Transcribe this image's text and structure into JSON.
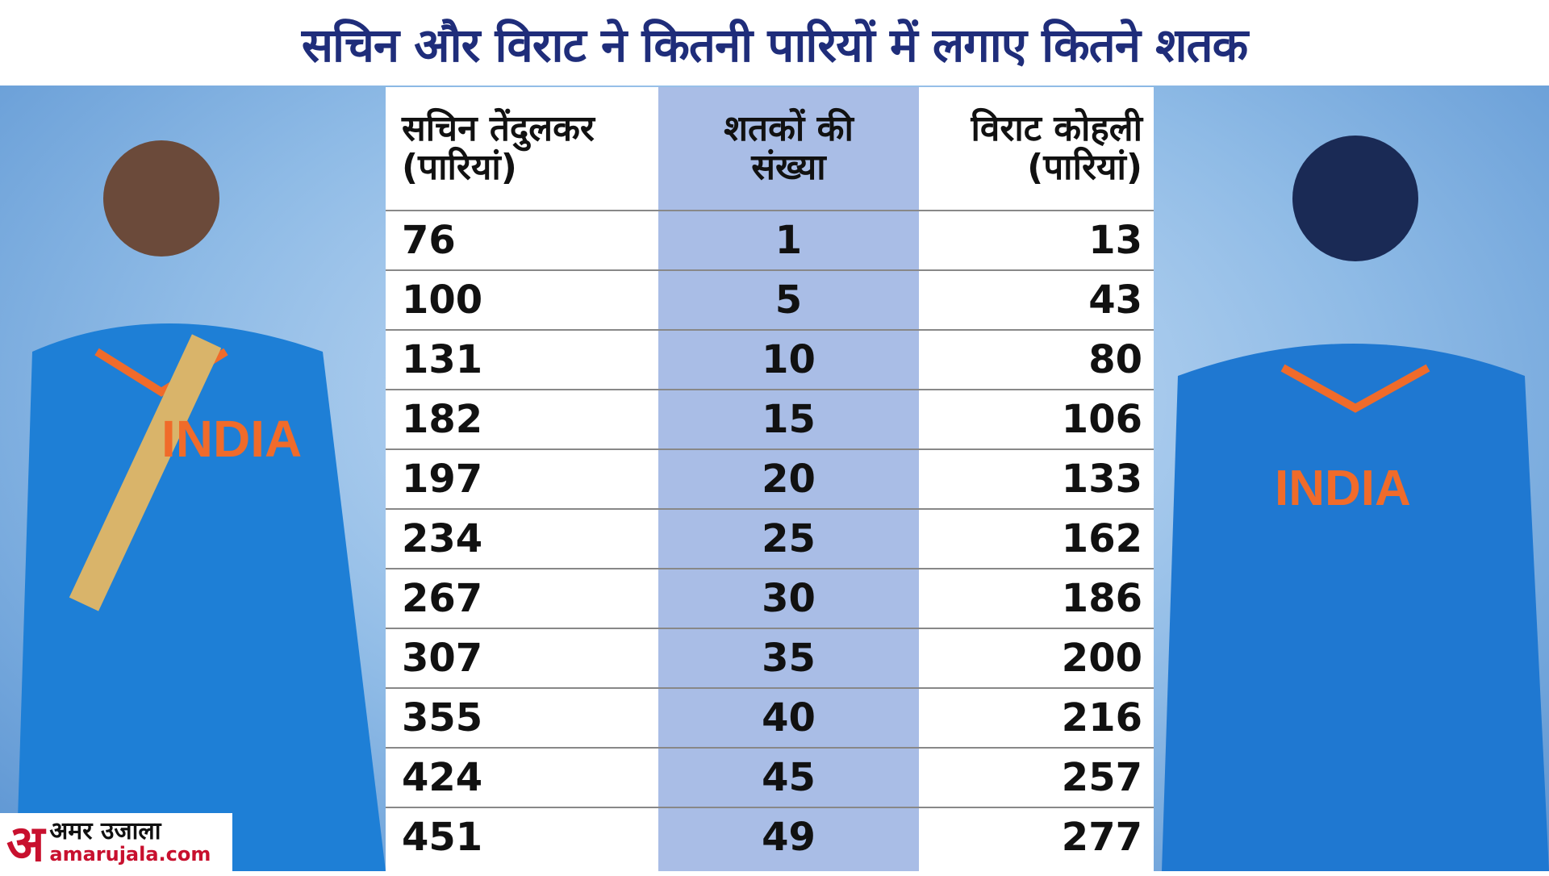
{
  "header": {
    "title": "सचिन और विराट ने कितनी पारियों में लगाए कितने शतक"
  },
  "table": {
    "headers": [
      [
        "सचिन तेंदुलकर",
        "(पारियां)"
      ],
      [
        "शतकों की",
        "संख्या"
      ],
      [
        "विराट कोहली",
        "(पारियां)"
      ]
    ],
    "rows": [
      [
        76,
        1,
        13
      ],
      [
        100,
        5,
        43
      ],
      [
        131,
        10,
        80
      ],
      [
        182,
        15,
        106
      ],
      [
        197,
        20,
        133
      ],
      [
        234,
        25,
        162
      ],
      [
        267,
        30,
        186
      ],
      [
        307,
        35,
        200
      ],
      [
        355,
        40,
        216
      ],
      [
        424,
        45,
        257
      ],
      [
        451,
        49,
        277
      ]
    ]
  },
  "logo": {
    "letter": "अ",
    "name": "अमर उजाला",
    "url": "amarujala.com"
  }
}
